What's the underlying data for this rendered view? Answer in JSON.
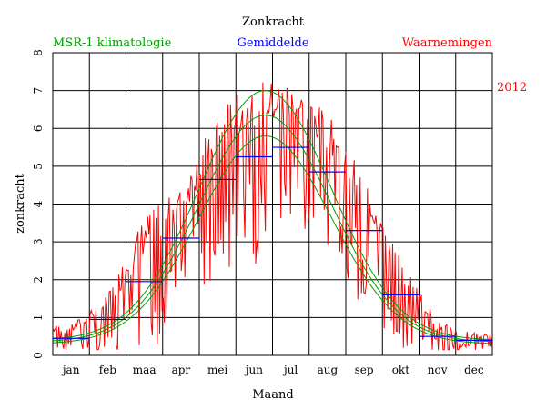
{
  "chart_data": {
    "type": "line",
    "title": "Zonkracht",
    "xlabel": "Maand",
    "ylabel": "zonkracht",
    "year_label": "2012",
    "ylim": [
      0,
      8
    ],
    "yticks": [
      "0",
      "1",
      "2",
      "3",
      "4",
      "5",
      "6",
      "7",
      "8"
    ],
    "categories": [
      "jan",
      "feb",
      "maa",
      "apr",
      "mei",
      "jun",
      "jul",
      "aug",
      "sep",
      "okt",
      "nov",
      "dec"
    ],
    "grid": true,
    "legend": [
      {
        "label": "MSR-1 klimatologie",
        "color": "#00a000"
      },
      {
        "label": "Gemiddelde",
        "color": "#0000ff"
      },
      {
        "label": "Waarnemingen",
        "color": "#ff0000"
      }
    ],
    "series": [
      {
        "name": "MSR-1 klimatologie",
        "color": "#00a000",
        "curves": [
          {
            "peak": 7.0,
            "base": 0.4
          },
          {
            "peak": 6.35,
            "base": 0.35
          },
          {
            "peak": 5.8,
            "base": 0.3
          }
        ]
      },
      {
        "name": "Gemiddelde",
        "color": "#0000ff",
        "monthly_values": [
          0.45,
          0.95,
          1.95,
          3.1,
          4.65,
          5.25,
          5.5,
          4.85,
          3.3,
          1.6,
          0.5,
          0.4
        ]
      },
      {
        "name": "Waarnemingen",
        "color": "#ff0000",
        "monthly_mean": [
          0.45,
          0.95,
          1.95,
          3.1,
          4.65,
          5.25,
          5.5,
          4.85,
          3.3,
          1.6,
          0.5,
          0.4
        ],
        "monthly_max": [
          0.8,
          1.6,
          3.7,
          4.4,
          6.5,
          7.3,
          7.2,
          6.4,
          4.8,
          2.6,
          0.9,
          0.6
        ]
      }
    ]
  }
}
